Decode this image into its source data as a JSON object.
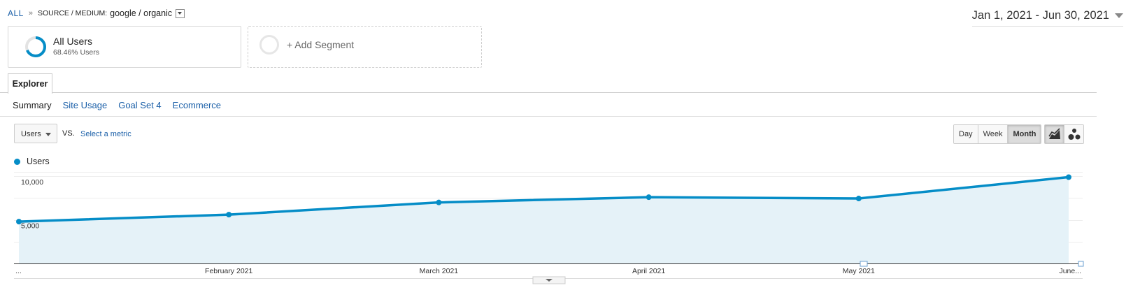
{
  "breadcrumb": {
    "root": "ALL",
    "separator": "»",
    "dimension": "SOURCE / MEDIUM:",
    "value": "google / organic"
  },
  "date_range": "Jan 1, 2021 - Jun 30, 2021",
  "segments": {
    "active": {
      "name": "All Users",
      "subtext": "68.46% Users",
      "ring_fraction": 0.6846
    },
    "add_label": "+ Add Segment"
  },
  "tabs": {
    "explorer": "Explorer"
  },
  "subtabs": [
    {
      "label": "Summary",
      "active": true
    },
    {
      "label": "Site Usage",
      "active": false
    },
    {
      "label": "Goal Set 4",
      "active": false
    },
    {
      "label": "Ecommerce",
      "active": false
    }
  ],
  "metric": {
    "selected": "Users",
    "vs": "VS.",
    "compare_link": "Select a metric"
  },
  "period_buttons": [
    {
      "label": "Day",
      "selected": false
    },
    {
      "label": "Week",
      "selected": false
    },
    {
      "label": "Month",
      "selected": true
    }
  ],
  "colors": {
    "accent": "#058dc7",
    "fill": "#e5f2f8",
    "link": "#1a5fa8"
  },
  "chart_data": {
    "type": "area",
    "series": [
      {
        "name": "Users",
        "values": [
          4800,
          5600,
          7000,
          7600,
          7450,
          9900
        ]
      }
    ],
    "x_labels": [
      "...",
      "February 2021",
      "March 2021",
      "April 2021",
      "May 2021",
      "June..."
    ],
    "y_ticks": [
      {
        "value": 10000,
        "label": "10,000"
      },
      {
        "value": 5000,
        "label": "5,000"
      }
    ],
    "ylim": [
      0,
      10500
    ],
    "grid": true,
    "legend": "top-left"
  }
}
